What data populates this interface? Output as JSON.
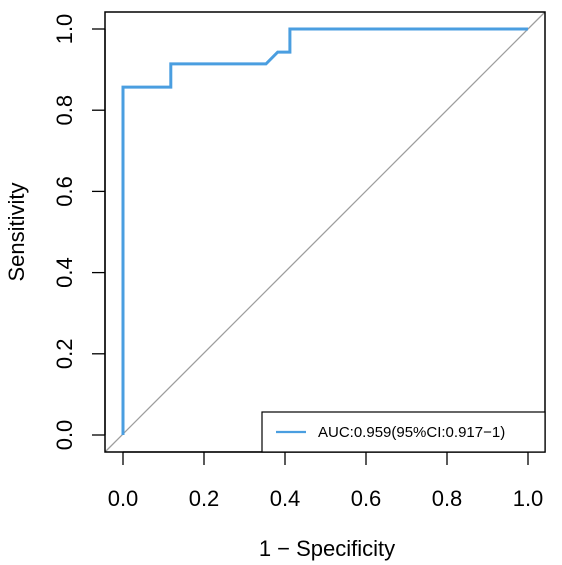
{
  "colors": {
    "roc": "#4a9ee0",
    "diagonal": "#9e9e9e",
    "axis": "#000000"
  },
  "chart_data": {
    "type": "line",
    "xlabel": "1 − Specificity",
    "ylabel": "Sensitivity",
    "xlim": [
      0,
      1
    ],
    "ylim": [
      0,
      1
    ],
    "x_ticks": [
      "0.0",
      "0.2",
      "0.4",
      "0.6",
      "0.8",
      "1.0"
    ],
    "y_ticks": [
      "0.0",
      "0.2",
      "0.4",
      "0.6",
      "0.8",
      "1.0"
    ],
    "grid": false,
    "legend_position": "bottom-right",
    "series": [
      {
        "name": "AUC:0.959(95%CI:0.917−1)",
        "x": [
          0,
          0,
          0.118,
          0.118,
          0.353,
          0.382,
          0.412,
          0.412,
          1.0
        ],
        "y": [
          0,
          0.857,
          0.857,
          0.914,
          0.914,
          0.943,
          0.943,
          1.0,
          1.0
        ]
      }
    ],
    "reference_line": {
      "x": [
        0,
        1
      ],
      "y": [
        0,
        1
      ]
    }
  }
}
